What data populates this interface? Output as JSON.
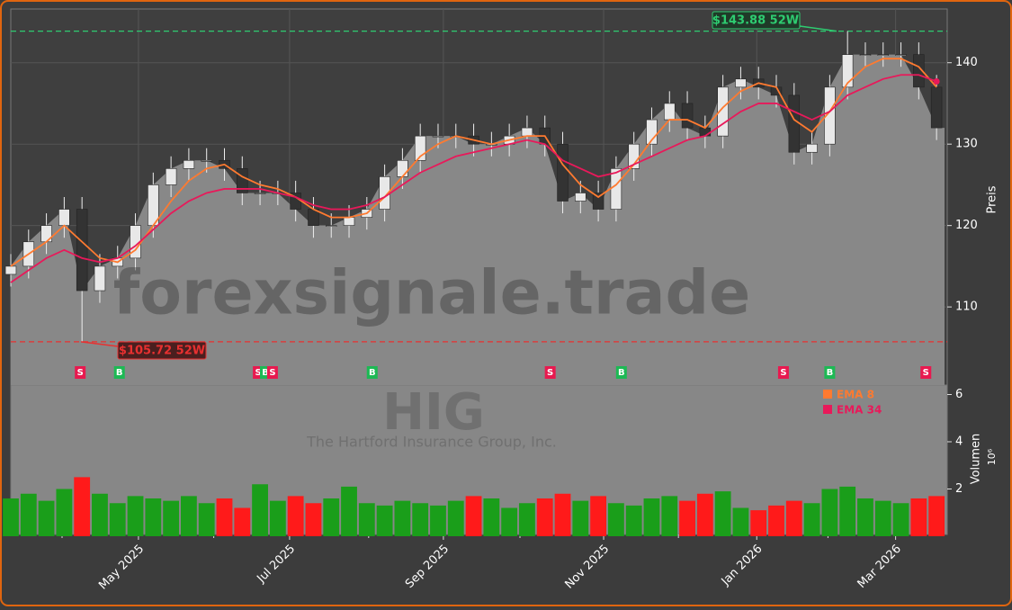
{
  "chart_data": {
    "type": "candlestick",
    "title": "HIG",
    "subtitle": "The Hartford Insurance Group, Inc.",
    "watermark": "forexsignale.trade",
    "y_label": "Preis",
    "y2_label": "Volumen",
    "y2_scale_label": "10⁶",
    "x": [
      0,
      1,
      2,
      3,
      4,
      5,
      6,
      7,
      8,
      9,
      10,
      11,
      12,
      13,
      14,
      15,
      16,
      17,
      18,
      19,
      20,
      21,
      22,
      23,
      24,
      25,
      26,
      27,
      28,
      29,
      30,
      31,
      32,
      33,
      34,
      35,
      36,
      37,
      38,
      39,
      40,
      41,
      42,
      43,
      44,
      45,
      46,
      47,
      48,
      49,
      50,
      51,
      52
    ],
    "open": [
      114,
      115,
      118,
      120,
      122,
      112,
      115,
      116,
      120,
      125,
      127,
      128,
      128,
      127,
      124,
      124,
      124,
      122,
      120,
      120,
      121,
      122,
      126,
      128,
      131,
      131,
      131,
      130,
      130,
      131,
      132,
      130,
      123,
      124,
      122,
      127,
      130,
      133,
      135,
      132,
      131,
      137,
      138,
      137,
      136,
      129,
      130,
      137,
      141,
      141,
      141,
      141,
      137
    ],
    "high": [
      116.5,
      119.5,
      121.5,
      123.5,
      123.5,
      116.5,
      117.5,
      121.5,
      126.5,
      128.5,
      129.5,
      129.5,
      129.5,
      128.5,
      125.5,
      125.5,
      125.5,
      123.5,
      121.5,
      122.5,
      123.5,
      127.5,
      129.5,
      132.5,
      132.5,
      132.5,
      132.5,
      131.5,
      132.5,
      133.5,
      133.5,
      131.5,
      125.5,
      125.5,
      128.5,
      131.5,
      134.5,
      136.5,
      136.5,
      133.5,
      138.5,
      139.5,
      139.5,
      138.5,
      137.5,
      131.5,
      138.5,
      143.88,
      142.5,
      142.5,
      142.5,
      142.5,
      138.5
    ],
    "low": [
      112.5,
      113.5,
      116.5,
      118.5,
      105.72,
      110.5,
      113.5,
      114.5,
      118.5,
      123.5,
      125.5,
      126.5,
      125.5,
      122.5,
      122.5,
      122.5,
      120.5,
      118.5,
      118.5,
      118.5,
      119.5,
      120.5,
      124.5,
      126.5,
      129.5,
      129.5,
      128.5,
      128.5,
      128.5,
      129.5,
      128.5,
      121.5,
      121.5,
      120.5,
      120.5,
      125.5,
      128.5,
      131.5,
      130.5,
      129.5,
      129.5,
      135.5,
      135.5,
      134.5,
      127.5,
      127.5,
      128.5,
      135.5,
      139.5,
      139.5,
      139.5,
      135.5,
      130.5
    ],
    "close": [
      115,
      118,
      120,
      122,
      112,
      115,
      116,
      120,
      125,
      127,
      128,
      128,
      127,
      124,
      124,
      124,
      122,
      120,
      120,
      121,
      122,
      126,
      128,
      131,
      131,
      131,
      130,
      130,
      131,
      132,
      130,
      123,
      124,
      122,
      127,
      130,
      133,
      135,
      132,
      131,
      137,
      138,
      137,
      136,
      129,
      130,
      137,
      141,
      141,
      141,
      141,
      137,
      132
    ],
    "volume": [
      1.6,
      1.8,
      1.5,
      2.0,
      2.5,
      1.8,
      1.4,
      1.7,
      1.6,
      1.5,
      1.7,
      1.4,
      1.6,
      1.2,
      2.2,
      1.5,
      1.7,
      1.4,
      1.6,
      2.1,
      1.4,
      1.3,
      1.5,
      1.4,
      1.3,
      1.5,
      1.7,
      1.6,
      1.2,
      1.4,
      1.6,
      1.8,
      1.5,
      1.7,
      1.4,
      1.3,
      1.6,
      1.7,
      1.5,
      1.8,
      1.9,
      1.2,
      1.1,
      1.3,
      1.5,
      1.4,
      2.0,
      2.1,
      1.6,
      1.5,
      1.4,
      1.6,
      1.7
    ],
    "up_color": "#1a9e1a",
    "down_color": "#ff1a1a",
    "area_color": "#888888",
    "series": [
      {
        "name": "EMA 8",
        "color": "#ff7a30",
        "values": [
          115,
          116.5,
          118,
          120,
          118,
          116,
          115.5,
          117,
          120,
          123,
          125.5,
          127,
          127.5,
          126,
          125,
          124.5,
          123.5,
          122,
          121,
          121,
          121.5,
          123.5,
          126,
          128.5,
          130,
          131,
          130.5,
          130,
          130.5,
          131,
          131,
          127.5,
          125,
          123.5,
          125,
          127.5,
          130.5,
          133,
          133,
          132,
          134.5,
          136.5,
          137.5,
          137,
          133,
          131.5,
          134,
          137.5,
          139.5,
          140.5,
          140.5,
          139.5,
          137
        ]
      },
      {
        "name": "EMA 34",
        "color": "#e8195a",
        "values": [
          113,
          114.5,
          116,
          117,
          116,
          115.5,
          116,
          117.5,
          119.5,
          121.5,
          123,
          124,
          124.5,
          124.5,
          124.5,
          124,
          123.5,
          122.5,
          122,
          122,
          122.5,
          123.5,
          125,
          126.5,
          127.5,
          128.5,
          129,
          129.5,
          130,
          130.5,
          130,
          128,
          127,
          126,
          126.5,
          127.5,
          128.5,
          129.5,
          130.5,
          131,
          132.5,
          134,
          135,
          135,
          134,
          133,
          134,
          136,
          137,
          138,
          138.5,
          138.5,
          137.7
        ]
      }
    ],
    "high_line": {
      "value": 143.88,
      "label": "$143.88 52W",
      "color": "#2ecc71"
    },
    "low_line": {
      "value": 105.72,
      "label": "$105.72 52W",
      "color": "#e83030"
    },
    "signals": [
      {
        "x": 3.9,
        "label": "S",
        "color": "#e8194f"
      },
      {
        "x": 6.1,
        "label": "B",
        "color": "#1db954"
      },
      {
        "x": 13.9,
        "label": "S",
        "color": "#e8194f"
      },
      {
        "x": 14.3,
        "label": "B",
        "color": "#1db954"
      },
      {
        "x": 14.7,
        "label": "S",
        "color": "#e8194f"
      },
      {
        "x": 20.3,
        "label": "B",
        "color": "#1db954"
      },
      {
        "x": 30.3,
        "label": "S",
        "color": "#e8194f"
      },
      {
        "x": 34.3,
        "label": "B",
        "color": "#1db954"
      },
      {
        "x": 43.4,
        "label": "S",
        "color": "#e8194f"
      },
      {
        "x": 46.0,
        "label": "B",
        "color": "#1db954"
      },
      {
        "x": 51.4,
        "label": "S",
        "color": "#e8194f"
      }
    ],
    "xlim": [
      0,
      52.6
    ],
    "xticks": [
      {
        "value": 7.17,
        "label": "May 2025"
      },
      {
        "value": 15.66,
        "label": "Jul 2025"
      },
      {
        "value": 24.3,
        "label": "Sep 2025"
      },
      {
        "value": 33.3,
        "label": "Nov 2025"
      },
      {
        "value": 41.9,
        "label": "Jan 2026"
      },
      {
        "value": 49.7,
        "label": "Mar 2026"
      }
    ],
    "xminor": [
      2.88,
      11.4,
      20.1,
      28.6,
      37.5,
      45.9
    ],
    "ylim": [
      100.4,
      146.6
    ],
    "yticks": [
      110,
      120,
      130,
      140
    ],
    "y2lim": [
      0,
      6.4
    ],
    "y2ticks": [
      2,
      4,
      6
    ],
    "grid": true
  }
}
